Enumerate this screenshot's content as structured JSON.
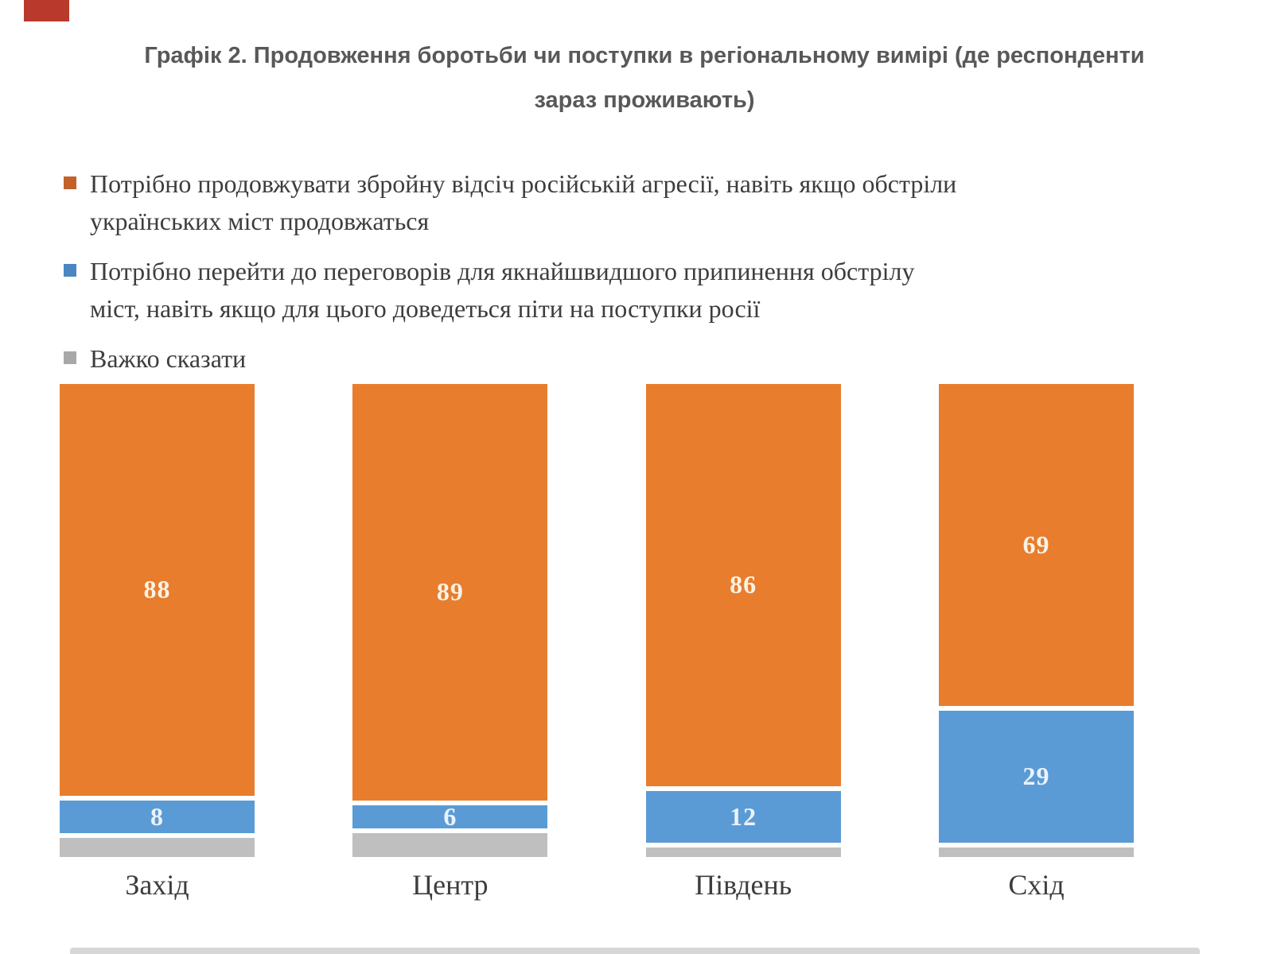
{
  "page": {
    "corner_badge_color": "#b93a2c",
    "bottom_strip_color": "#c9c9c9",
    "background_color": "#ffffff"
  },
  "title": {
    "line1": "Графік 2. Продовження боротьби чи поступки в регіональному вимірі (де респонденти",
    "line2": "зараз проживають)"
  },
  "legend": {
    "items": [
      {
        "swatch_color": "#c2622a",
        "swatch_icon": "orange-square-icon",
        "lines": [
          "Потрібно продовжувати збройну відсіч російській агресії, навіть якщо обстріли",
          "українських міст продовжаться"
        ]
      },
      {
        "swatch_color": "#4a87c0",
        "swatch_icon": "blue-square-icon",
        "lines": [
          "Потрібно перейти до переговорів для якнайшвидшого припинення обстрілу",
          "міст, навіть якщо для цього доведеться піти на поступки росії"
        ]
      },
      {
        "swatch_color": "#a8a8a8",
        "swatch_icon": "gray-square-icon",
        "lines": [
          "Важко сказати"
        ]
      }
    ]
  },
  "chart_data": {
    "type": "bar",
    "subtype": "stacked-100-percent",
    "orientation": "vertical",
    "title": "Графік 2. Продовження боротьби чи поступки в регіональному вимірі (де респонденти зараз проживають)",
    "xlabel": "",
    "ylabel": "",
    "ylim": [
      0,
      100
    ],
    "grid": false,
    "legend_position": "top-left",
    "categories": [
      "Захід",
      "Центр",
      "Південь",
      "Схід"
    ],
    "series": [
      {
        "name": "Потрібно продовжувати збройну відсіч російській агресії, навіть якщо обстріли українських міст продовжаться",
        "color": "#e87d2d",
        "label_color": "#f8f2e4",
        "values": [
          88,
          89,
          86,
          69
        ],
        "labels": [
          "88",
          "89",
          "86",
          "69"
        ]
      },
      {
        "name": "Потрібно перейти до переговорів для якнайшвидшого припинення обстрілу міст, навіть якщо для цього доведеться піти на поступки росії",
        "color": "#5b9bd5",
        "label_color": "#eaf2fa",
        "values": [
          8,
          6,
          12,
          29
        ],
        "labels": [
          "8",
          "6",
          "12",
          "29"
        ]
      },
      {
        "name": "Важко сказати",
        "color": "#bfbfbf",
        "label_color": "",
        "values": [
          4,
          5,
          2,
          2
        ],
        "labels": [
          "",
          "",
          "",
          ""
        ]
      }
    ]
  }
}
